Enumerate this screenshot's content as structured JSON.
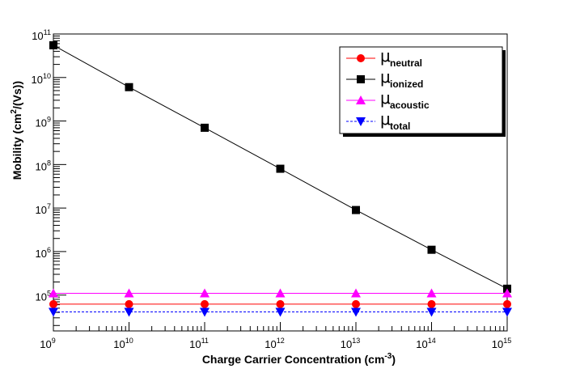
{
  "chart_data": {
    "type": "line",
    "x_scale": "log",
    "y_scale": "log",
    "xlabel": {
      "main": "Charge Carrier Concentration (cm",
      "exp": "-3",
      "tail": ")"
    },
    "ylabel": {
      "main": "Mobility (cm",
      "exp": "2",
      "tail": "/(Vs))"
    },
    "xlim": [
      1000000000.0,
      1000000000000000.0
    ],
    "ylim": [
      15000,
      100000000000.0
    ],
    "x_ticks": [
      {
        "value": 1000000000.0,
        "base": "10",
        "exp": "9"
      },
      {
        "value": 10000000000.0,
        "base": "10",
        "exp": "10"
      },
      {
        "value": 100000000000.0,
        "base": "10",
        "exp": "11"
      },
      {
        "value": 1000000000000.0,
        "base": "10",
        "exp": "12"
      },
      {
        "value": 10000000000000.0,
        "base": "10",
        "exp": "13"
      },
      {
        "value": 100000000000000.0,
        "base": "10",
        "exp": "14"
      },
      {
        "value": 1000000000000000.0,
        "base": "10",
        "exp": "15"
      }
    ],
    "y_ticks": [
      {
        "value": 100000.0,
        "base": "10",
        "exp": "5"
      },
      {
        "value": 1000000.0,
        "base": "10",
        "exp": "6"
      },
      {
        "value": 10000000.0,
        "base": "10",
        "exp": "7"
      },
      {
        "value": 100000000.0,
        "base": "10",
        "exp": "8"
      },
      {
        "value": 1000000000.0,
        "base": "10",
        "exp": "9"
      },
      {
        "value": 10000000000.0,
        "base": "10",
        "exp": "10"
      },
      {
        "value": 100000000000.0,
        "base": "10",
        "exp": "11"
      }
    ],
    "x": [
      1000000000.0,
      10000000000.0,
      100000000000.0,
      1000000000000.0,
      10000000000000.0,
      100000000000000.0,
      1000000000000000.0
    ],
    "series": [
      {
        "name": "neutral",
        "color": "#ff0000",
        "marker": "circle",
        "line": "solid",
        "values": [
          62000,
          62000,
          62000,
          62000,
          62000,
          62000,
          62000
        ]
      },
      {
        "name": "ionized",
        "color": "#000000",
        "marker": "square",
        "line": "solid",
        "values": [
          55000000000,
          6000000000,
          700000000,
          80000000,
          9000000,
          1100000,
          140000
        ]
      },
      {
        "name": "acoustic",
        "color": "#ff00ff",
        "marker": "triangle-up",
        "line": "solid",
        "values": [
          110000,
          110000,
          110000,
          110000,
          110000,
          110000,
          110000
        ]
      },
      {
        "name": "total",
        "color": "#0000ff",
        "marker": "triangle-down",
        "line": "dashed",
        "values": [
          41000,
          41000,
          41000,
          41000,
          41000,
          41000,
          41000
        ]
      }
    ],
    "legend": {
      "placement": "top-right",
      "symbol": "μ"
    },
    "grid": false
  }
}
